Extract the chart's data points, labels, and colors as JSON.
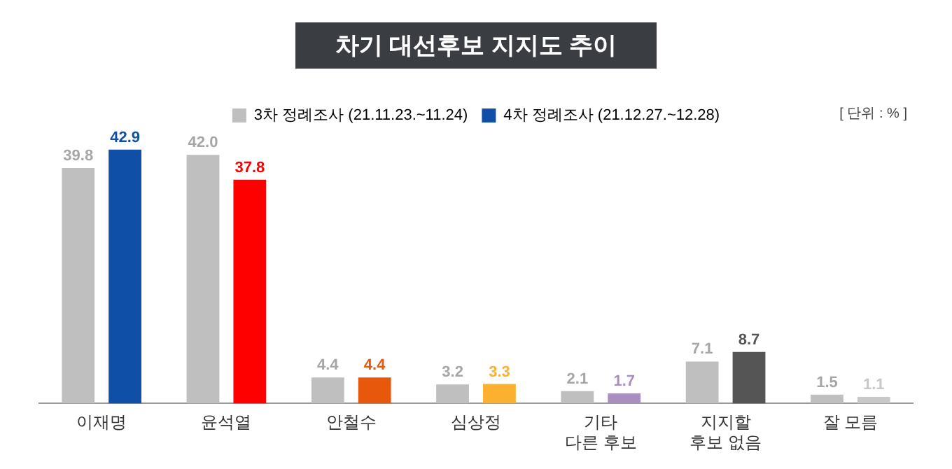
{
  "chart_data": {
    "type": "bar",
    "title": "차기 대선후보 지지도 추이",
    "annotations": [
      "[ 단위 : % ]"
    ],
    "categories": [
      "이재명",
      "윤석열",
      "안철수",
      "심상정",
      "기타\n다른 후보",
      "지지할\n후보 없음",
      "잘 모름"
    ],
    "series": [
      {
        "name": "3차 정례조사 (21.11.23.~11.24)",
        "color": "#bfbfbf",
        "values": [
          39.8,
          42.0,
          4.4,
          3.2,
          2.1,
          7.1,
          1.5
        ],
        "value_labels": [
          "39.8",
          "42.0",
          "4.4",
          "3.2",
          "2.1",
          "7.1",
          "1.5"
        ]
      },
      {
        "name": "4차 정례조사 (21.12.27.~12.28)",
        "color": "#0f4fa8",
        "colors": [
          "#0f4fa8",
          "#ff0000",
          "#e8580c",
          "#fbb030",
          "#a98fbf",
          "#555555",
          "#c8c8c8"
        ],
        "values": [
          42.9,
          37.8,
          4.4,
          3.3,
          1.7,
          8.7,
          1.1
        ]
      }
    ],
    "data_labels": true,
    "legend": "top",
    "grid": false
  }
}
